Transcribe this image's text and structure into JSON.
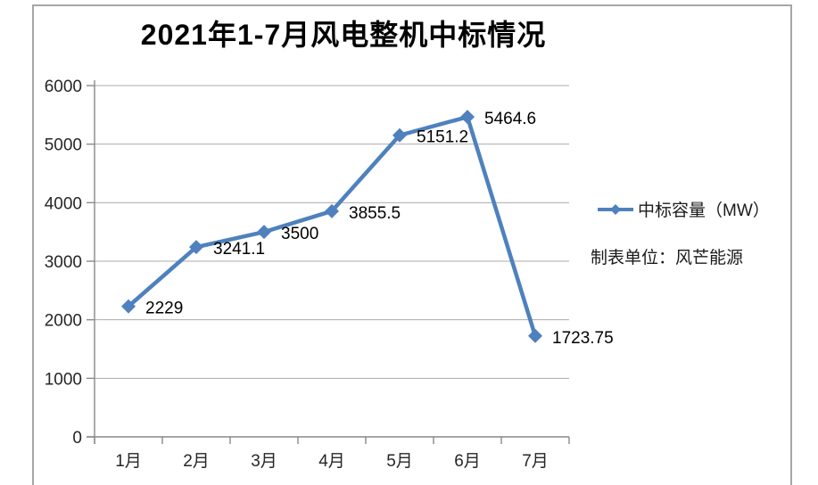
{
  "chart": {
    "title": "2021年1-7月风电整机中标情况",
    "legend_label": "中标容量（MW）",
    "note": "制表单位：风芒能源"
  },
  "chart_data": {
    "type": "line",
    "title": "2021年1-7月风电整机中标情况",
    "categories": [
      "1月",
      "2月",
      "3月",
      "4月",
      "5月",
      "6月",
      "7月"
    ],
    "series": [
      {
        "name": "中标容量（MW）",
        "values": [
          2229,
          3241.1,
          3500,
          3855.5,
          5151.2,
          5464.6,
          1723.75
        ],
        "data_labels": [
          "2229",
          "3241.1",
          "3500",
          "3855.5",
          "5151.2",
          "5464.6",
          "1723.75"
        ]
      }
    ],
    "xlabel": "",
    "ylabel": "",
    "ylim": [
      0,
      6000
    ],
    "yticks": [
      0,
      1000,
      2000,
      3000,
      4000,
      5000,
      6000
    ],
    "grid": true,
    "marker": "diamond",
    "legend_position": "right",
    "annotations": [
      "制表单位：风芒能源"
    ],
    "colors": {
      "line": "#4e81bd",
      "marker": "#4e81bd",
      "gridline": "#ababab",
      "axis": "#898989",
      "tick_text": "#262626",
      "label_text": "#000000",
      "frame_border": "#a6a6a6"
    }
  }
}
